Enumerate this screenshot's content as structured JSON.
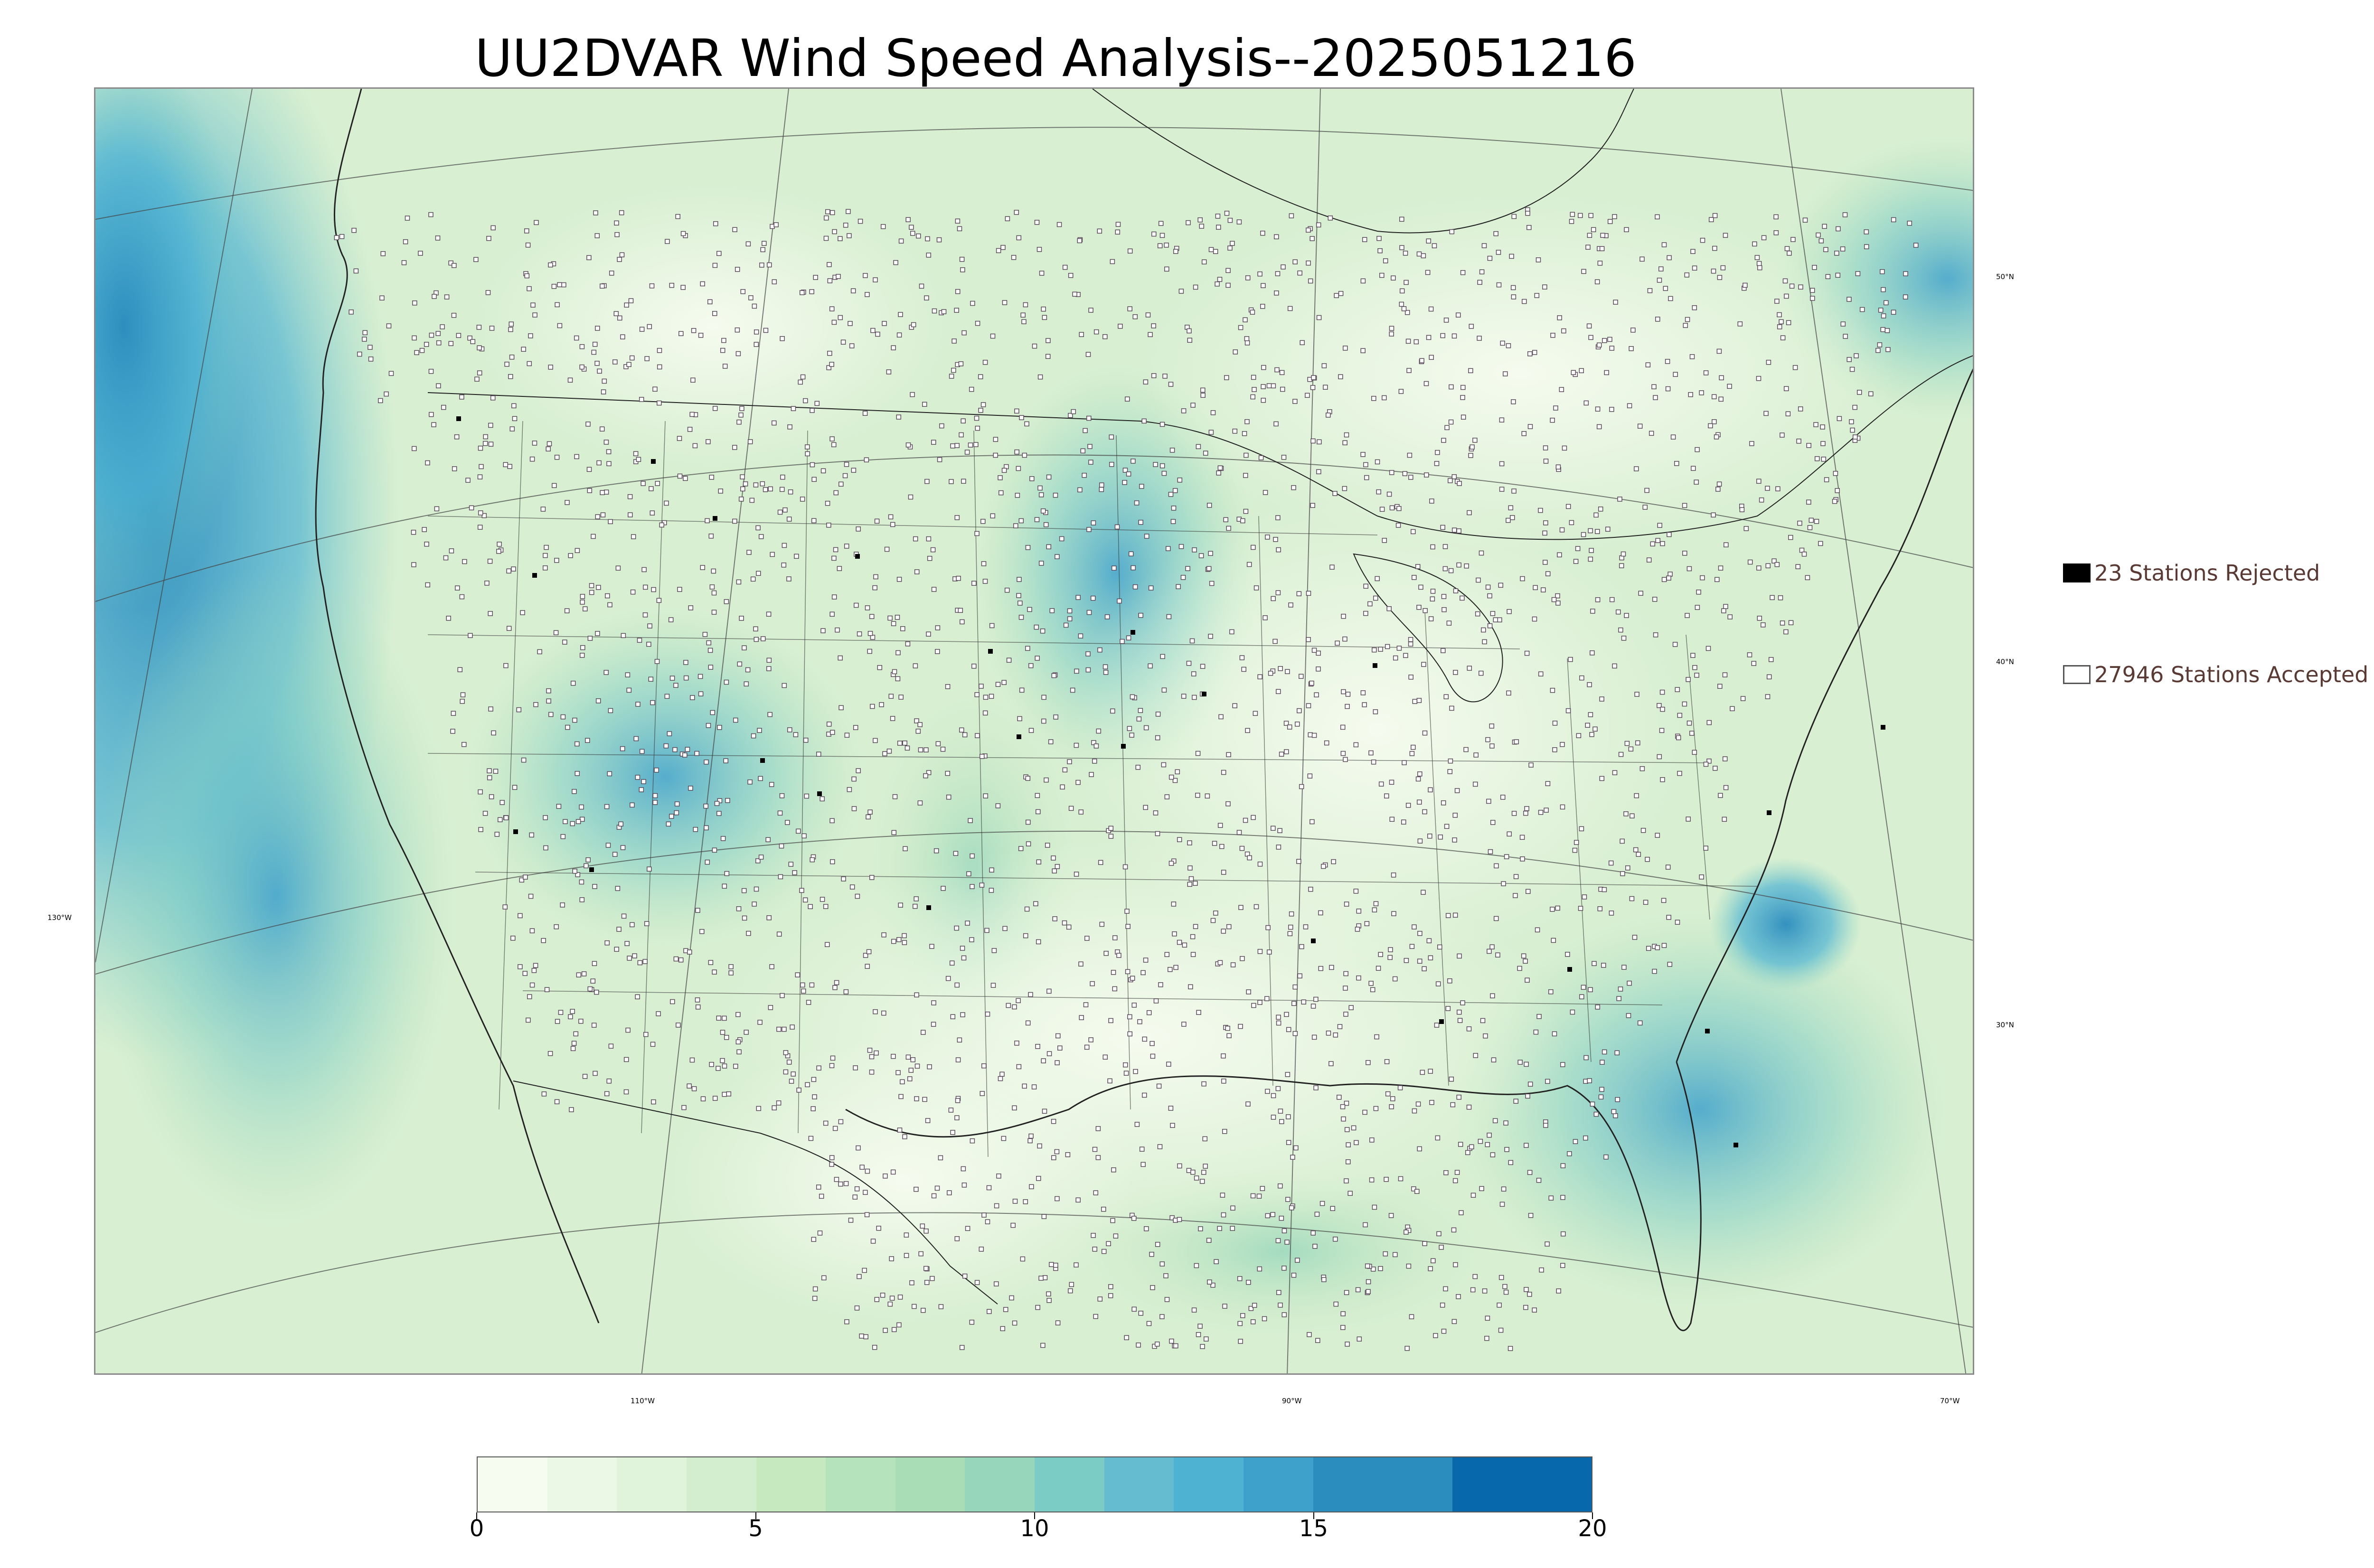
{
  "title": "UU2DVAR Wind Speed Analysis--2025051216",
  "map": {
    "latitude_labels": [
      "50°N",
      "40°N",
      "30°N"
    ],
    "longitude_labels": [
      "130°W",
      "110°W",
      "90°W",
      "70°W"
    ]
  },
  "legend": {
    "rejected": {
      "label": "23 Stations Rejected",
      "count": 23,
      "color": "#000000"
    },
    "accepted": {
      "label": "27946 Stations Accepted",
      "count": 27946,
      "color": "#ffffff"
    }
  },
  "colorbar": {
    "min": 0,
    "max": 20,
    "tick_labels": [
      "0",
      "5",
      "10",
      "15",
      "20"
    ],
    "colors": [
      "#f7fcf0",
      "#ecf8e6",
      "#e0f3db",
      "#d3eece",
      "#c7e9c0",
      "#b5e3bc",
      "#a8ddb5",
      "#97d6bb",
      "#7bccc4",
      "#65bcd1",
      "#4eb3d3",
      "#3ea1cb",
      "#2b8cbe",
      "#2b8cbe",
      "#0868ac",
      "#0868ac"
    ]
  },
  "colors": {
    "land_base": "#e4f4dc",
    "ocean_strong": "#3fa0cc",
    "state_lines": "#333333"
  }
}
